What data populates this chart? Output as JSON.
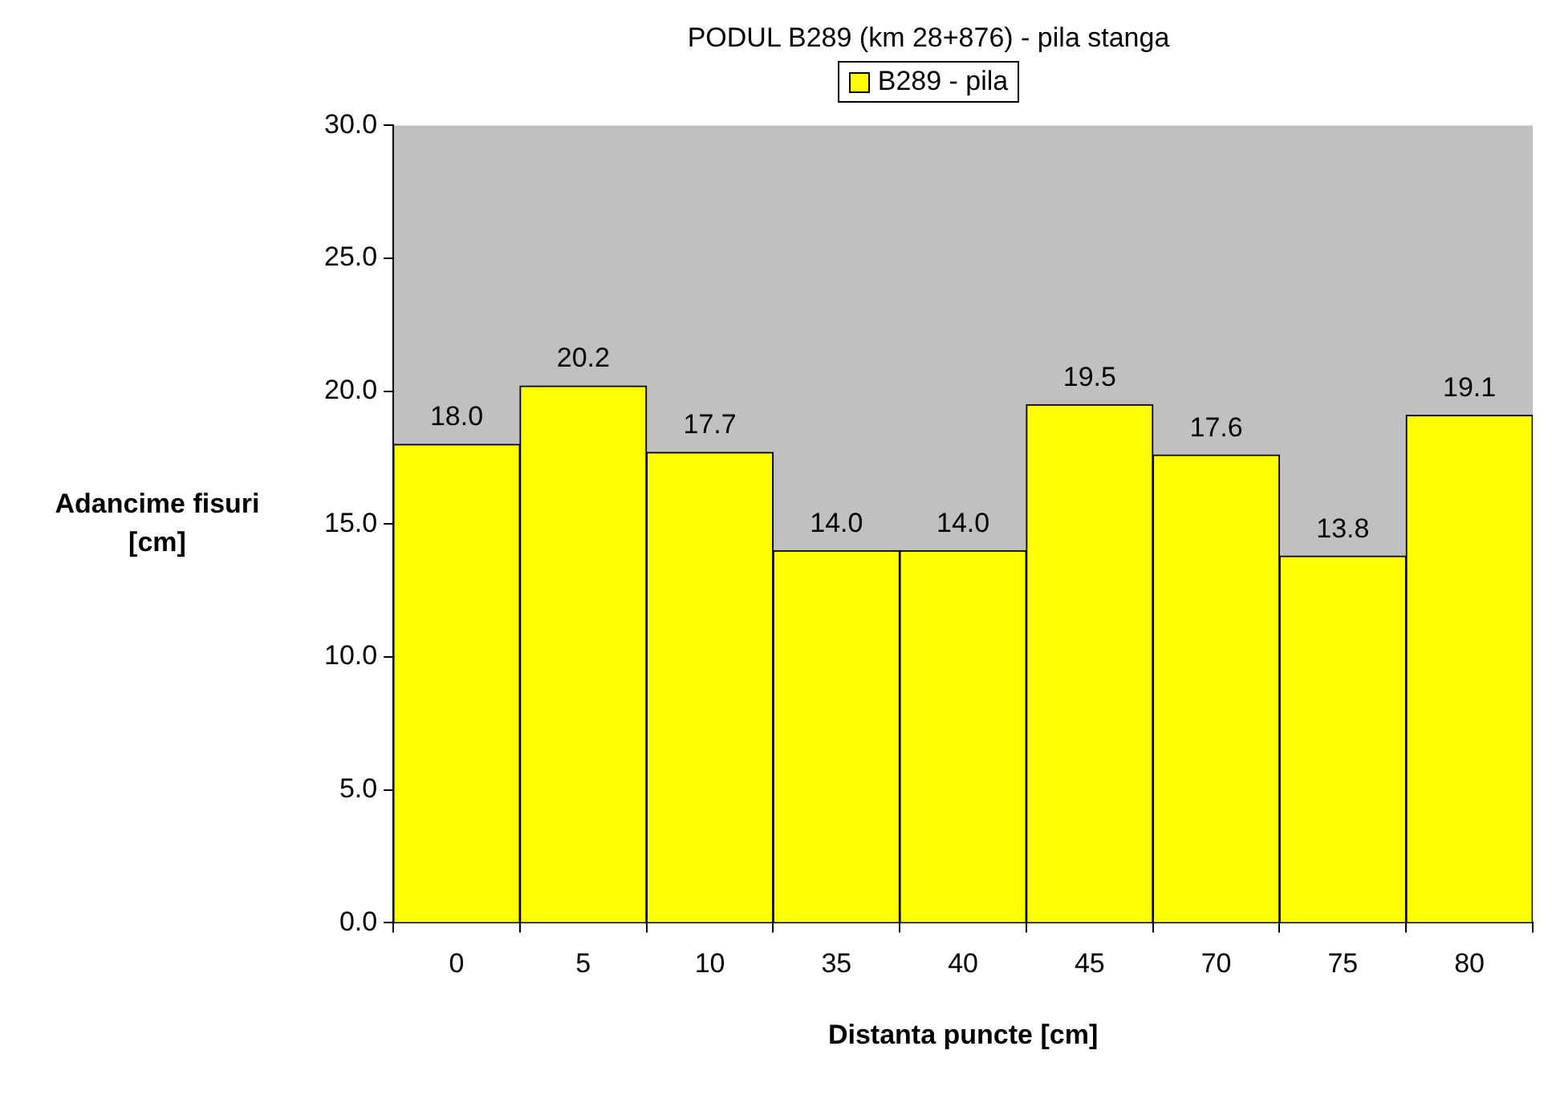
{
  "chart_data": {
    "type": "bar",
    "title": "PODUL B289 (km 28+876) - pila stanga",
    "xlabel": "Distanta puncte [cm]",
    "ylabel": "Adancime fisuri [cm]",
    "categories": [
      "0",
      "5",
      "10",
      "35",
      "40",
      "45",
      "70",
      "75",
      "80"
    ],
    "series": [
      {
        "name": "B289 - pila",
        "color": "#ffff00",
        "values": [
          18.0,
          20.2,
          17.7,
          14.0,
          14.0,
          19.5,
          17.6,
          13.8,
          19.1
        ],
        "value_labels": [
          "18.0",
          "20.2",
          "17.7",
          "14.0",
          "14.0",
          "19.5",
          "17.6",
          "13.8",
          "19.1"
        ]
      }
    ],
    "ylim": [
      0,
      30
    ],
    "yticks": [
      {
        "value": 0,
        "label": "0.0"
      },
      {
        "value": 5,
        "label": "5.0"
      },
      {
        "value": 10,
        "label": "10.0"
      },
      {
        "value": 15,
        "label": "15.0"
      },
      {
        "value": 20,
        "label": "20.0"
      },
      {
        "value": 25,
        "label": "25.0"
      },
      {
        "value": 30,
        "label": "30.0"
      }
    ],
    "legend": "top",
    "grid": false
  }
}
